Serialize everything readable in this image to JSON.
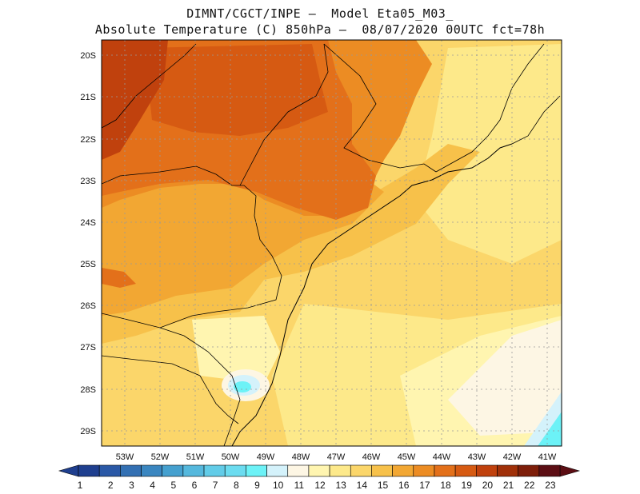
{
  "title": {
    "line1": "DIMNT/CGCT/INPE –  Model Eta05_M03_",
    "line2": "Absolute Temperature (C) 850hPa –  08/07/2020 00UTC fct=78h"
  },
  "map": {
    "lat_labels": [
      "20S",
      "21S",
      "22S",
      "23S",
      "24S",
      "25S",
      "26S",
      "27S",
      "28S",
      "29S"
    ],
    "lon_labels": [
      "53W",
      "52W",
      "51W",
      "50W",
      "49W",
      "48W",
      "47W",
      "46W",
      "45W",
      "44W",
      "43W",
      "42W",
      "41W"
    ]
  },
  "colorbar": {
    "labels": [
      "1",
      "2",
      "3",
      "4",
      "5",
      "6",
      "7",
      "8",
      "9",
      "10",
      "11",
      "12",
      "13",
      "14",
      "15",
      "16",
      "17",
      "18",
      "19",
      "20",
      "21",
      "22",
      "23"
    ],
    "colors": [
      "#1f3f8f",
      "#2a58a6",
      "#3370b3",
      "#3a86c0",
      "#45a0cf",
      "#55b8dd",
      "#62cce8",
      "#6bdcf0",
      "#6cf2f7",
      "#d4f2fb",
      "#fdf6e4",
      "#fff5b0",
      "#fde98a",
      "#fbd66a",
      "#f7c14a",
      "#f2a733",
      "#ec8c23",
      "#e3701a",
      "#d65a12",
      "#c0410d",
      "#a03009",
      "#7e1e0a",
      "#5c0e14"
    ]
  }
}
